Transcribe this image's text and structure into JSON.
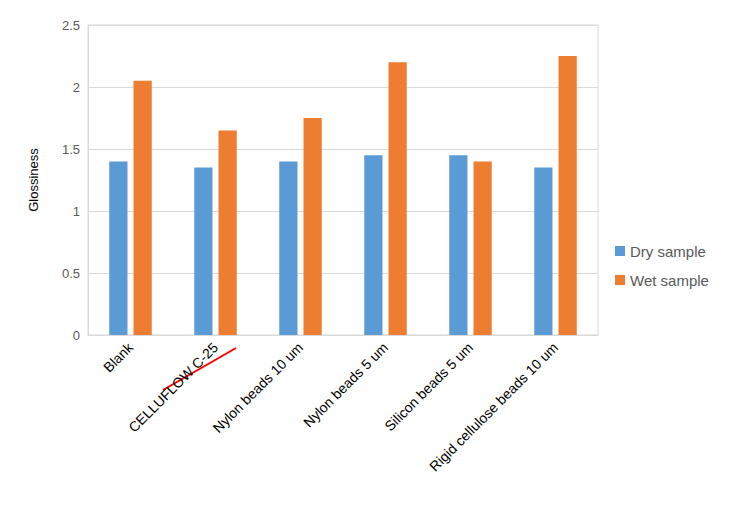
{
  "chart_data": {
    "type": "bar",
    "y_label": "Glossiness",
    "categories": [
      "Blank",
      "CELLUFLOW C-25",
      "Nylon beads 10 um",
      "Nylon beads 5 um",
      "Silicon beads 5 um",
      "Rigid cellulose beads 10 um"
    ],
    "series": [
      {
        "name": "Dry sample",
        "color": "#5b9bd5",
        "values": [
          1.4,
          1.35,
          1.4,
          1.45,
          1.45,
          1.35
        ]
      },
      {
        "name": "Wet sample",
        "color": "#ed7d31",
        "values": [
          2.05,
          1.65,
          1.75,
          2.2,
          1.4,
          2.25
        ]
      }
    ],
    "ylim": [
      0,
      2.5
    ],
    "yticks": [
      0,
      0.5,
      1,
      1.5,
      2,
      2.5
    ],
    "grid": true,
    "legend": "right"
  }
}
